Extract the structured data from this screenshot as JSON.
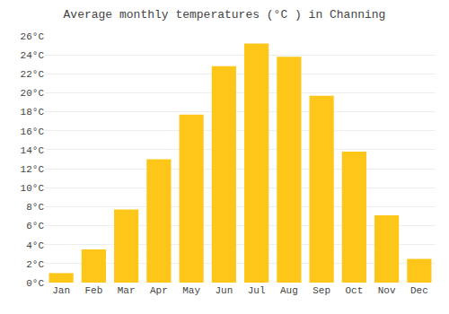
{
  "chart_data": {
    "type": "bar",
    "title": "Average monthly temperatures (°C ) in Channing",
    "categories": [
      "Jan",
      "Feb",
      "Mar",
      "Apr",
      "May",
      "Jun",
      "Jul",
      "Aug",
      "Sep",
      "Oct",
      "Nov",
      "Dec"
    ],
    "values": [
      1.0,
      3.5,
      7.7,
      13.0,
      17.7,
      22.8,
      25.2,
      23.8,
      19.7,
      13.8,
      7.1,
      2.5
    ],
    "color": "#FFC61A",
    "ylim": [
      0,
      26
    ],
    "yticks": [
      {
        "value": 0,
        "label": "0°C"
      },
      {
        "value": 2,
        "label": "2°C"
      },
      {
        "value": 4,
        "label": "4°C"
      },
      {
        "value": 6,
        "label": "6°C"
      },
      {
        "value": 8,
        "label": "8°C"
      },
      {
        "value": 10,
        "label": "10°C"
      },
      {
        "value": 12,
        "label": "12°C"
      },
      {
        "value": 14,
        "label": "14°C"
      },
      {
        "value": 16,
        "label": "16°C"
      },
      {
        "value": 18,
        "label": "18°C"
      },
      {
        "value": 20,
        "label": "20°C"
      },
      {
        "value": 22,
        "label": "22°C"
      },
      {
        "value": 24,
        "label": "24°C"
      },
      {
        "value": 26,
        "label": "26°C"
      }
    ],
    "grid": true
  }
}
